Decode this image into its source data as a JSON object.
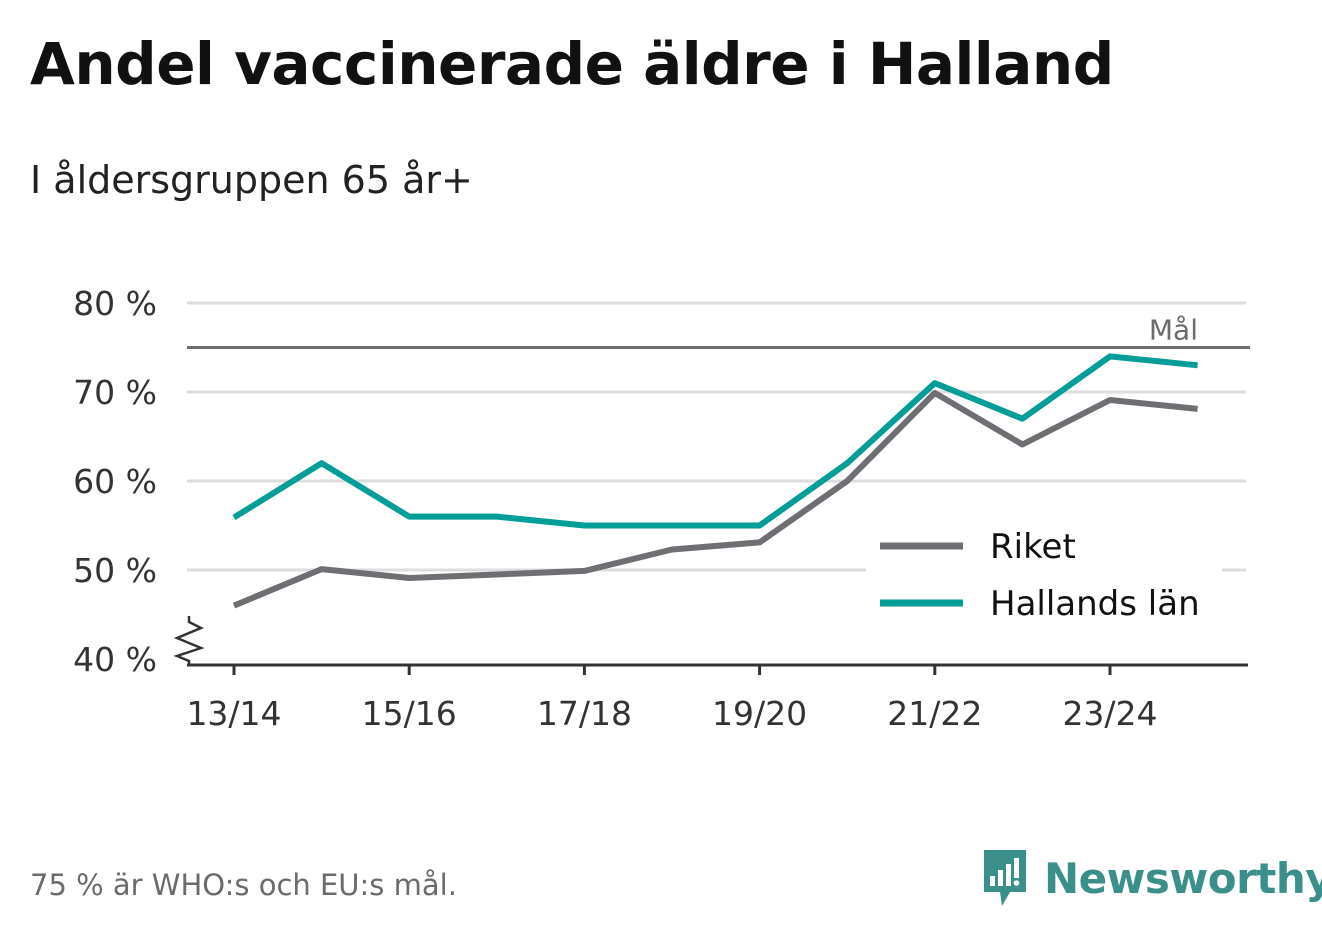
{
  "title": "Andel vaccinerade äldre i Halland",
  "subtitle": "I åldersgruppen 65 år+",
  "footnote": "75 % är WHO:s och EU:s mål.",
  "brand": {
    "name": "Newsworthy",
    "icon": "newsworthy-logo-icon",
    "color": "#3a8f8a"
  },
  "chart_data": {
    "type": "line",
    "x": [
      "13/14",
      "14/15",
      "15/16",
      "16/17",
      "17/18",
      "18/19",
      "19/20",
      "20/21",
      "21/22",
      "22/23",
      "23/24",
      "24/25"
    ],
    "x_tick_labels": [
      "13/14",
      "15/16",
      "17/18",
      "19/20",
      "21/22",
      "23/24"
    ],
    "y_tick_labels": [
      "80 %",
      "70 %",
      "60 %",
      "50 %",
      "40 %"
    ],
    "y_ticks": [
      80,
      70,
      60,
      50,
      40
    ],
    "ylim": [
      40,
      80
    ],
    "y_axis_break": true,
    "grid": true,
    "series": [
      {
        "name": "Riket",
        "color": "#6e6e73",
        "values": [
          46,
          50.1,
          49.1,
          49.5,
          49.9,
          52.3,
          53.1,
          60,
          69.9,
          64.1,
          69.1,
          68.1
        ]
      },
      {
        "name": "Hallands län",
        "color": "#009e96",
        "values": [
          55.9,
          62,
          56,
          56,
          55,
          55,
          55,
          62,
          71,
          67,
          74,
          73
        ]
      }
    ],
    "goal": {
      "value": 75,
      "label": "Mål",
      "color": "#6e6e73"
    },
    "legend": "bottom-right"
  }
}
